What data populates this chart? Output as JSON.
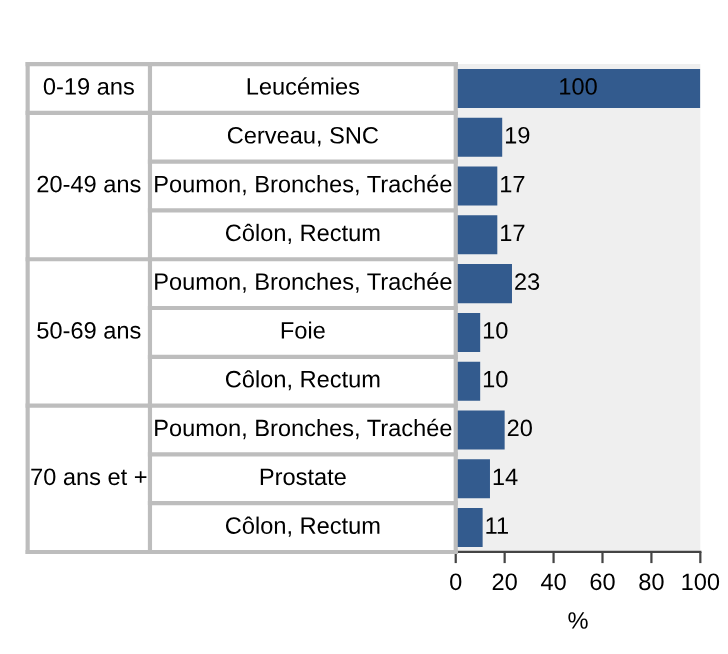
{
  "chart_data": {
    "type": "bar",
    "orientation": "horizontal",
    "xlabel": "%",
    "categories": [
      "Leucémies",
      "Cerveau, SNC",
      "Poumon, Bronches, Trachée",
      "Côlon, Rectum",
      "Poumon, Bronches, Trachée",
      "Foie",
      "Côlon, Rectum",
      "Poumon, Bronches, Trachée",
      "Prostate",
      "Côlon, Rectum"
    ],
    "values": [
      100,
      19,
      17,
      17,
      23,
      10,
      10,
      20,
      14,
      11
    ],
    "color": "#335b8e",
    "xlim": [
      0,
      100
    ],
    "xticks": [
      0,
      20,
      40,
      60,
      80,
      100
    ],
    "data_labels": true,
    "grid": false,
    "legend": false,
    "annotations": [
      "0-19 ans",
      "20-49 ans",
      "50-69 ans",
      "70 ans et +"
    ]
  }
}
